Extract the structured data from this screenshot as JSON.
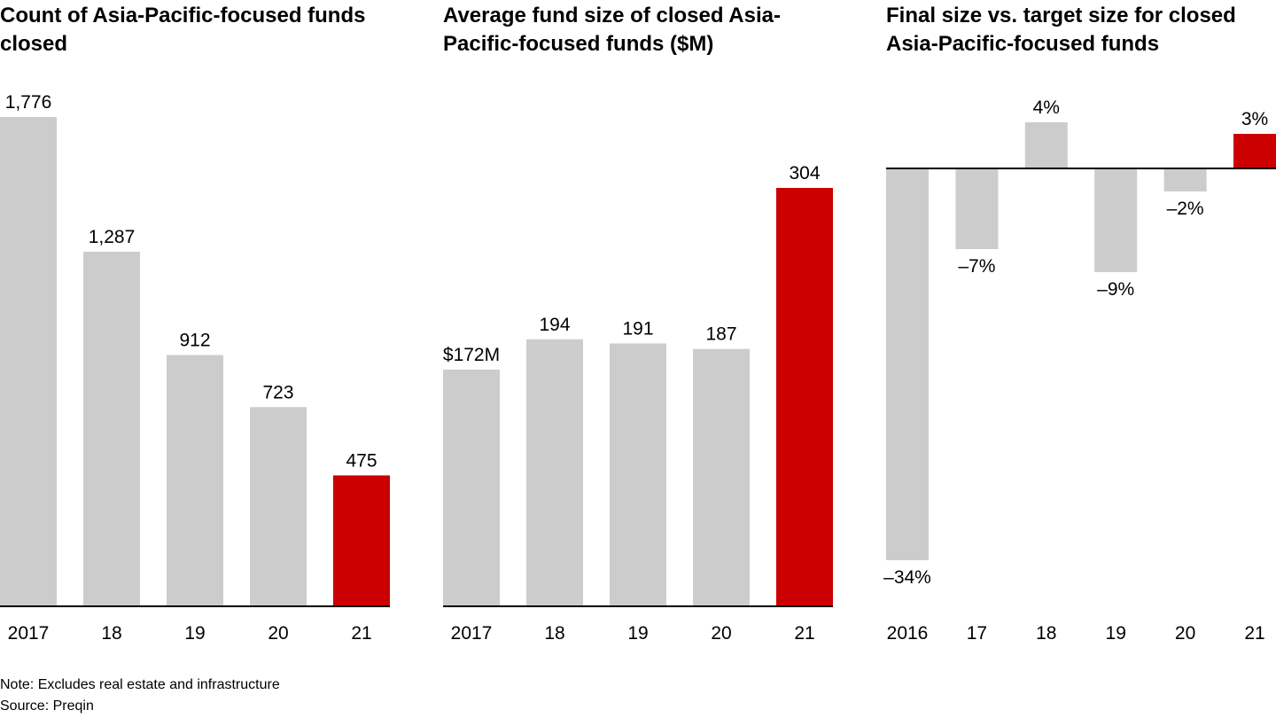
{
  "colors": {
    "bar": "#cccccc",
    "highlight": "#cc0000",
    "axis": "#000000"
  },
  "chart_data": [
    {
      "type": "bar",
      "title": "Count of Asia-Pacific-focused funds closed",
      "categories": [
        "2017",
        "18",
        "19",
        "20",
        "21"
      ],
      "values": [
        1776,
        1287,
        912,
        723,
        475
      ],
      "labels": [
        "1,776",
        "1,287",
        "912",
        "723",
        "475"
      ],
      "highlight_index": 4,
      "ylim": [
        0,
        1776
      ]
    },
    {
      "type": "bar",
      "title": "Average fund size of closed Asia-Pacific-focused funds ($M)",
      "categories": [
        "2017",
        "18",
        "19",
        "20",
        "21"
      ],
      "values": [
        172,
        194,
        191,
        187,
        304
      ],
      "labels": [
        "$172M",
        "194",
        "191",
        "187",
        "304"
      ],
      "highlight_index": 4,
      "ylim": [
        0,
        304
      ]
    },
    {
      "type": "bar",
      "title": "Final size vs. target size for closed Asia-Pacific-focused funds",
      "categories": [
        "2016",
        "17",
        "18",
        "19",
        "20",
        "21"
      ],
      "values": [
        -34,
        -7,
        4,
        -9,
        -2,
        3
      ],
      "labels": [
        "–34%",
        "–7%",
        "4%",
        "–9%",
        "–2%",
        "3%"
      ],
      "highlight_index": 5,
      "ylim": [
        -34,
        4
      ]
    }
  ],
  "footer": {
    "note": "Note: Excludes real estate and infrastructure",
    "source": "Source: Preqin"
  }
}
